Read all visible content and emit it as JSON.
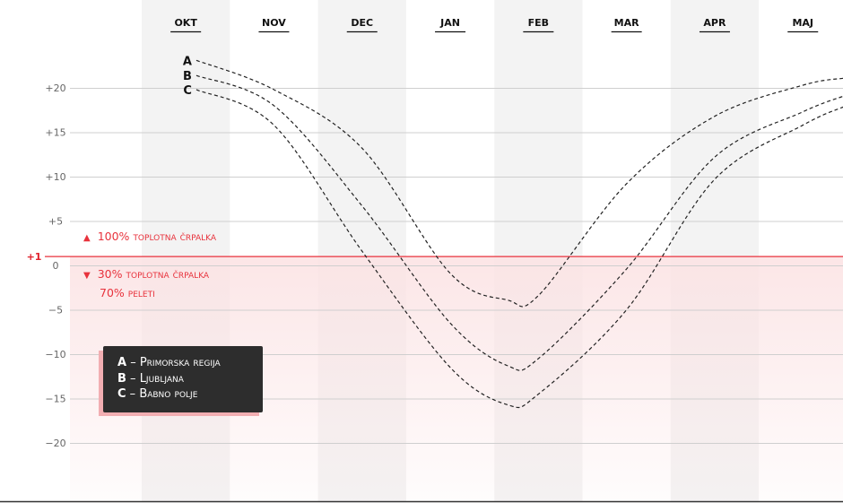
{
  "chart_data": {
    "type": "line",
    "categories": [
      "OKT",
      "NOV",
      "DEC",
      "JAN",
      "FEB",
      "MAR",
      "APR",
      "MAJ"
    ],
    "yticks": [
      20,
      15,
      10,
      5,
      0,
      -5,
      -10,
      -15,
      -20
    ],
    "ytick_labels": [
      "+20",
      "+15",
      "+10",
      "+5",
      "0",
      "−5",
      "−10",
      "−15",
      "−20"
    ],
    "ylim": [
      -27,
      28
    ],
    "grid": true,
    "threshold": {
      "value": 1,
      "label": "+1",
      "color": "#e8323c"
    },
    "zones": {
      "above": {
        "pct": "100%",
        "text": "toplotna črpalka"
      },
      "below": [
        {
          "pct": "30%",
          "text": "toplotna črpalka"
        },
        {
          "pct": "70%",
          "text": "peleti"
        }
      ]
    },
    "series": [
      {
        "name": "A",
        "x": [
          0.12,
          1,
          2,
          3,
          3.65,
          4,
          5,
          6,
          7,
          7.47
        ],
        "values": [
          23.1,
          19.8,
          13.2,
          -0.9,
          -3.9,
          -3.4,
          9.2,
          16.8,
          20.3,
          21.1
        ]
      },
      {
        "name": "B",
        "x": [
          0.12,
          1,
          2,
          3,
          3.65,
          4,
          5,
          6,
          7,
          7.47
        ],
        "values": [
          21.4,
          18.0,
          6.7,
          -6.5,
          -11.3,
          -10.5,
          -0.4,
          12.2,
          17.3,
          19.1
        ]
      },
      {
        "name": "C",
        "x": [
          0.12,
          1,
          2,
          3,
          3.65,
          4,
          5,
          6,
          7,
          7.47
        ],
        "values": [
          19.8,
          15.8,
          1.6,
          -11.5,
          -15.7,
          -14.5,
          -5.0,
          9.7,
          15.8,
          17.9
        ]
      }
    ],
    "legend": [
      {
        "key": "A",
        "label": "Primorska regija"
      },
      {
        "key": "B",
        "label": "Ljubljana"
      },
      {
        "key": "C",
        "label": "Babno polje"
      }
    ],
    "legend_placement": "bottom-left",
    "colors": {
      "shaded_column": "#f3f3f3",
      "line": "#222222",
      "zone": "#e8323c",
      "legend_bg": "#2d2d2d"
    }
  }
}
